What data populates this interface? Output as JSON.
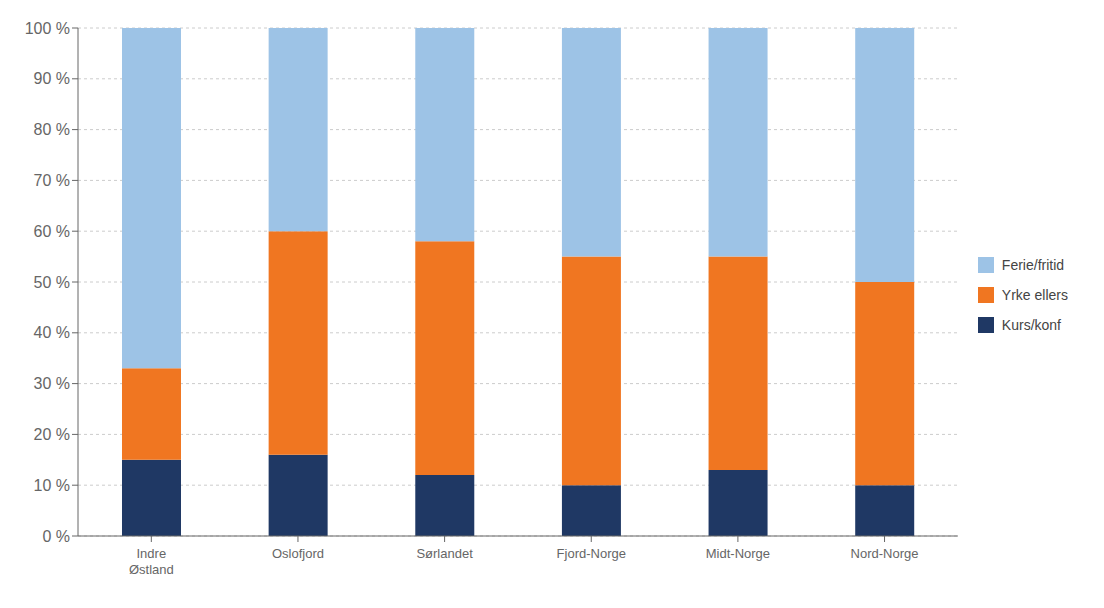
{
  "chart_data": {
    "type": "bar",
    "stacked": true,
    "categories": [
      "Indre\nØstland",
      "Oslofjord",
      "Sørlandet",
      "Fjord-Norge",
      "Midt-Norge",
      "Nord-Norge"
    ],
    "series": [
      {
        "name": "Kurs/konf",
        "color": "#1f3864",
        "values": [
          15,
          16,
          12,
          10,
          13,
          10
        ]
      },
      {
        "name": "Yrke ellers",
        "color": "#f07621",
        "values": [
          18,
          44,
          46,
          45,
          42,
          40
        ]
      },
      {
        "name": "Ferie/fritid",
        "color": "#9dc3e6",
        "values": [
          67,
          40,
          42,
          45,
          45,
          50
        ]
      }
    ],
    "ylim": [
      0,
      100
    ],
    "yticks": [
      {
        "value": 0,
        "label": "0 %"
      },
      {
        "value": 10,
        "label": "10 %"
      },
      {
        "value": 20,
        "label": "20 %"
      },
      {
        "value": 30,
        "label": "30 %"
      },
      {
        "value": 40,
        "label": "40 %"
      },
      {
        "value": 50,
        "label": "50 %"
      },
      {
        "value": 60,
        "label": "60 %"
      },
      {
        "value": 70,
        "label": "70 %"
      },
      {
        "value": 80,
        "label": "80 %"
      },
      {
        "value": 90,
        "label": "90 %"
      },
      {
        "value": 100,
        "label": "100 %"
      }
    ],
    "grid": true,
    "legend": "right"
  }
}
